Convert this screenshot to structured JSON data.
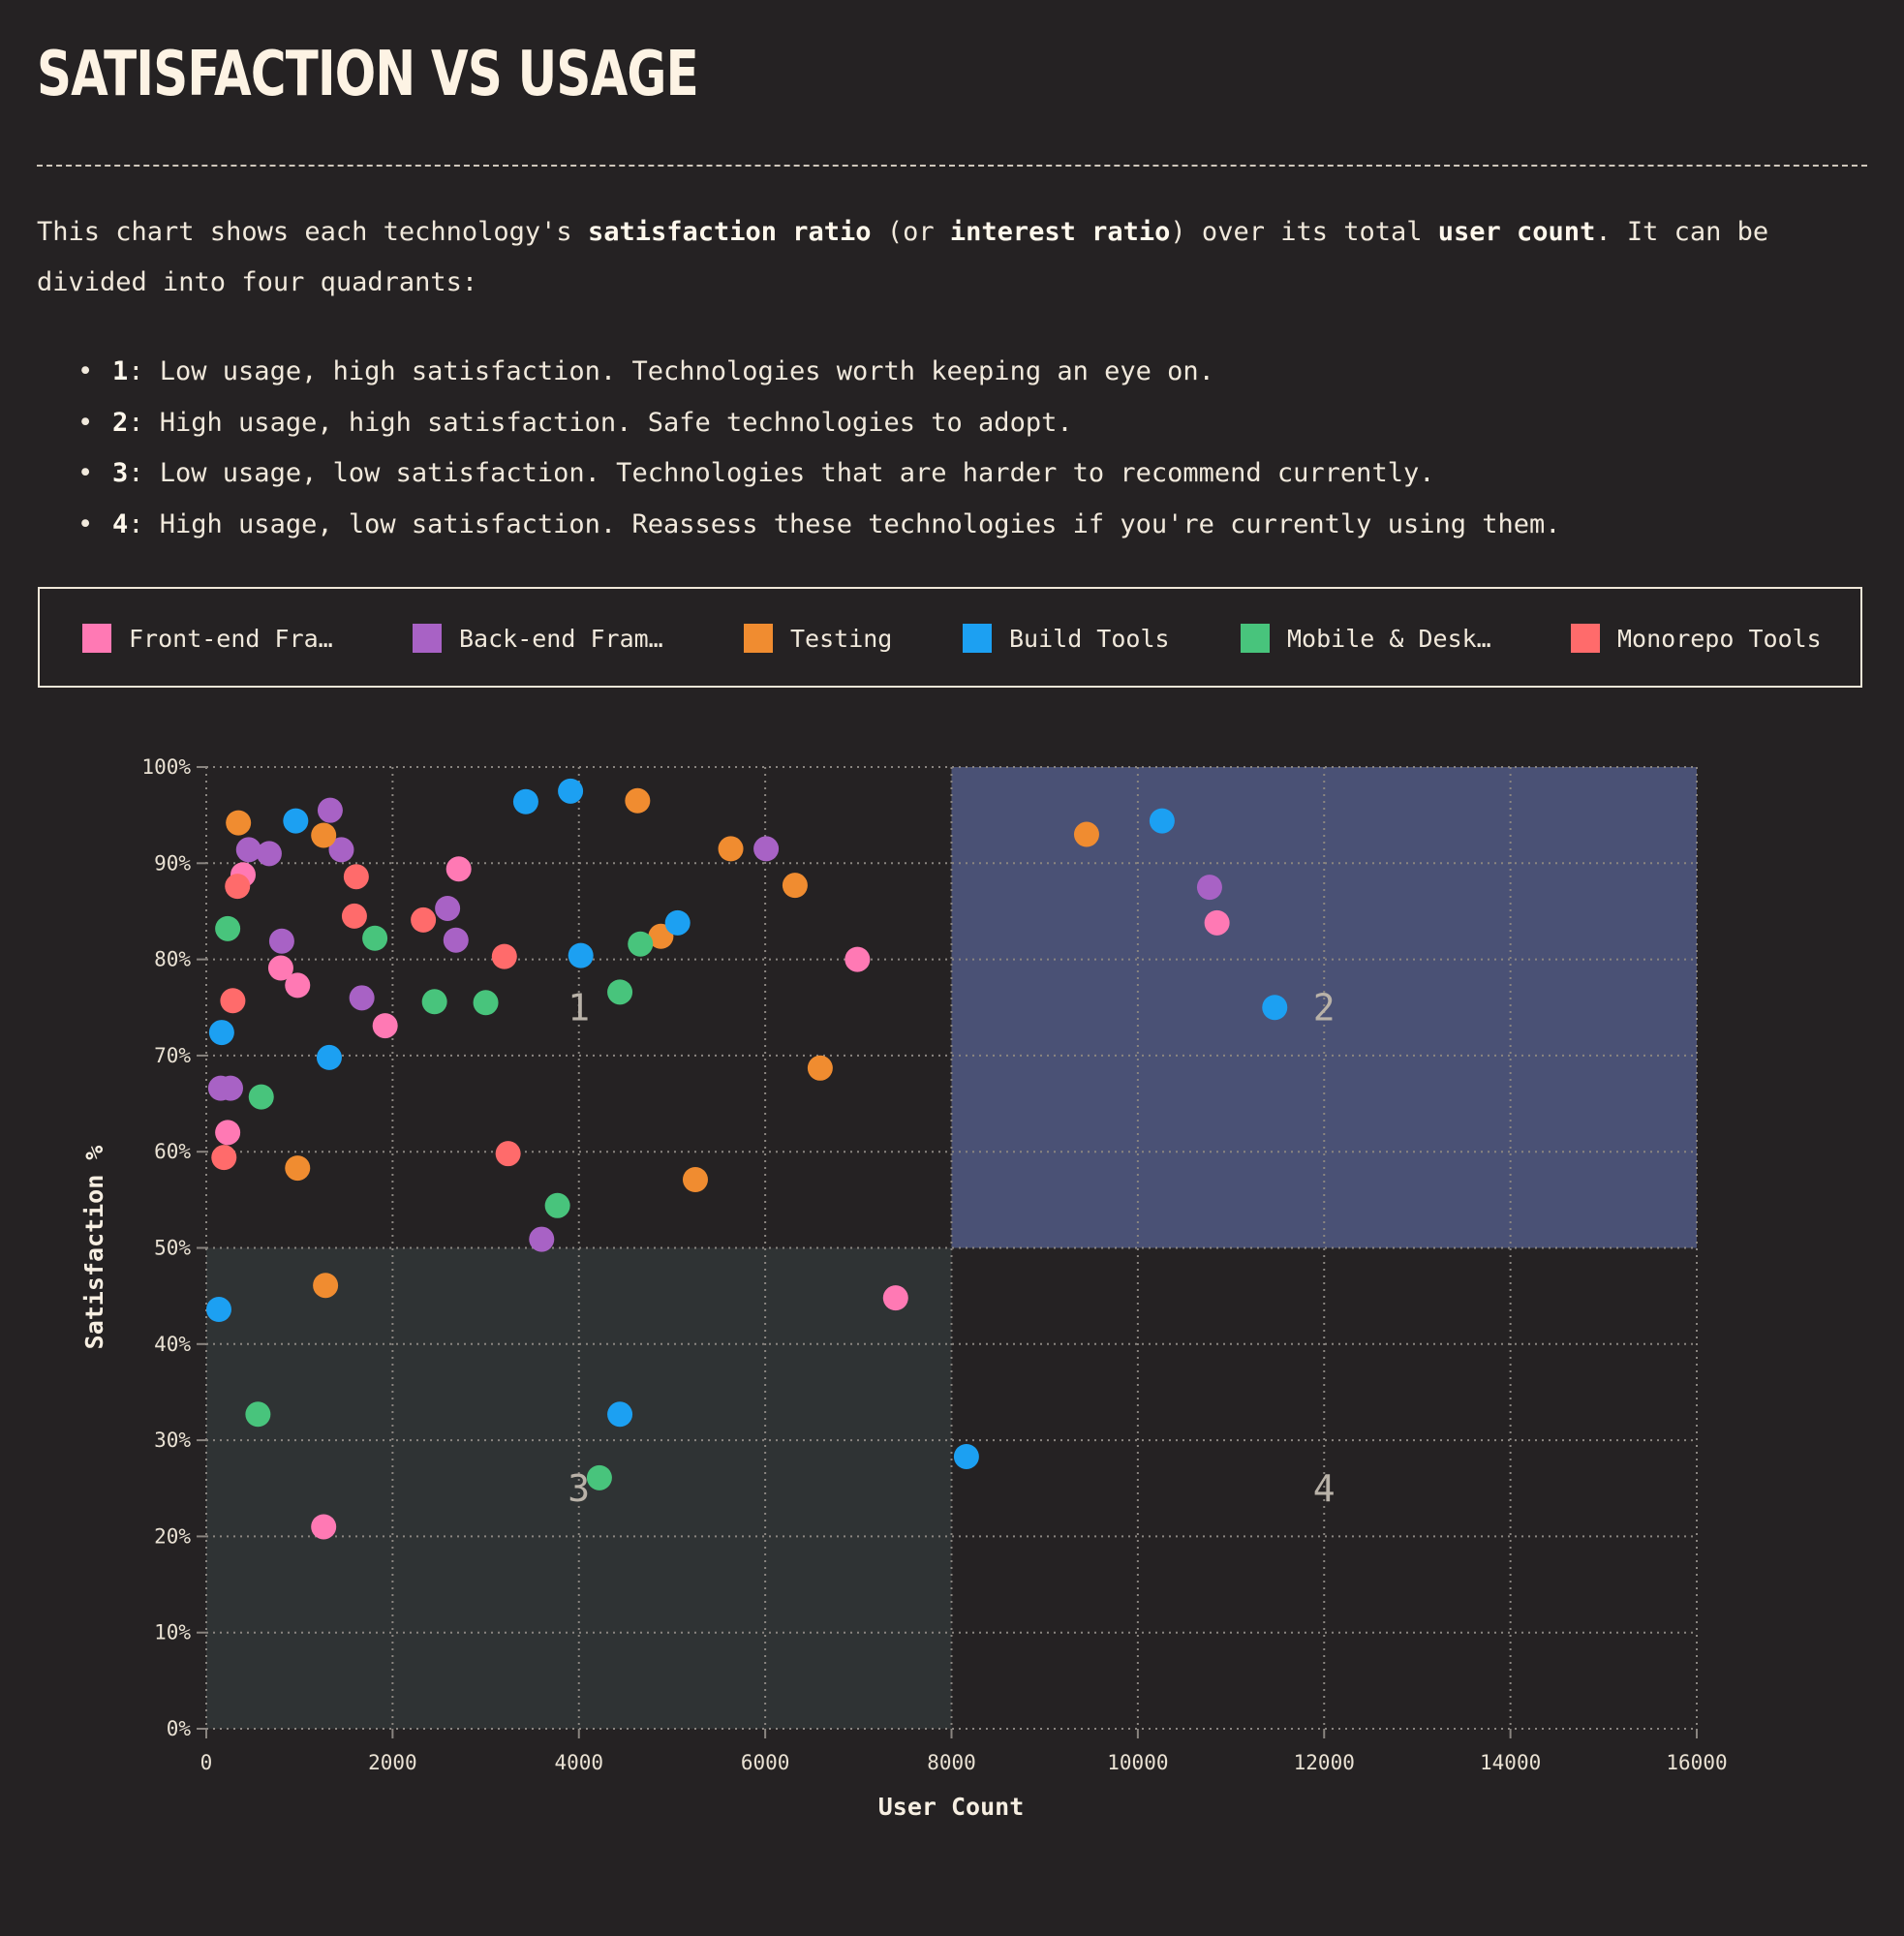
{
  "page": {
    "title": "SATISFACTION VS USAGE",
    "intro": {
      "t1": "This chart shows each technology's ",
      "b1": "satisfaction ratio",
      "t2": " (or ",
      "b2": "interest ratio",
      "t3": ") over its total ",
      "b3": "user count",
      "t4": ". It can be divided into four quadrants:"
    },
    "quadrants": [
      {
        "num": "1",
        "text": ": Low usage, high satisfaction. Technologies worth keeping an eye on."
      },
      {
        "num": "2",
        "text": ": High usage, high satisfaction. Safe technologies to adopt."
      },
      {
        "num": "3",
        "text": ": Low usage, low satisfaction. Technologies that are harder to recommend currently."
      },
      {
        "num": "4",
        "text": ": High usage, low satisfaction. Reassess these technologies if you're currently using them."
      }
    ],
    "bullet": "•"
  },
  "legend": [
    {
      "label": "Front-end Fra…",
      "color": "#ff79b4"
    },
    {
      "label": "Back-end Fram…",
      "color": "#a862c5"
    },
    {
      "label": "Testing",
      "color": "#f08c30"
    },
    {
      "label": "Build Tools",
      "color": "#1ca0f2"
    },
    {
      "label": "Mobile & Desk…",
      "color": "#48c47c"
    },
    {
      "label": "Monorepo Tools",
      "color": "#ff6b6b"
    }
  ],
  "chart_data": {
    "type": "scatter",
    "title": "Satisfaction vs Usage",
    "xlabel": "User Count",
    "ylabel": "Satisfaction %",
    "xlim": [
      0,
      16000
    ],
    "ylim": [
      0,
      100
    ],
    "x_ticks": [
      "0",
      "2000",
      "4000",
      "6000",
      "8000",
      "10000",
      "12000",
      "14000",
      "16000"
    ],
    "x_tick_values": [
      0,
      2000,
      4000,
      6000,
      8000,
      10000,
      12000,
      14000,
      16000
    ],
    "y_ticks": [
      "0%",
      "10%",
      "20%",
      "30%",
      "40%",
      "50%",
      "60%",
      "70%",
      "80%",
      "90%",
      "100%"
    ],
    "y_tick_values": [
      0,
      10,
      20,
      30,
      40,
      50,
      60,
      70,
      80,
      90,
      100
    ],
    "grid": true,
    "legend_position": "top",
    "quadrant_split": {
      "x": 8000,
      "y": 50
    },
    "quadrant_labels": [
      {
        "label": "1",
        "x": 4000,
        "y": 75
      },
      {
        "label": "2",
        "x": 12000,
        "y": 75
      },
      {
        "label": "3",
        "x": 4000,
        "y": 25
      },
      {
        "label": "4",
        "x": 12000,
        "y": 25
      }
    ],
    "quadrant_colors": {
      "q2": "#4a5175",
      "q3": "#2f3334"
    },
    "series": [
      {
        "name": "Front-end Frameworks",
        "color": "#ff79b4",
        "points": [
          [
            395,
            88.8
          ],
          [
            800,
            79.1
          ],
          [
            980,
            77.3
          ],
          [
            1920,
            73.1
          ],
          [
            2710,
            89.4
          ],
          [
            230,
            62.0
          ],
          [
            6990,
            80.0
          ],
          [
            10850,
            83.8
          ],
          [
            7400,
            44.8
          ],
          [
            1260,
            21.0
          ]
        ]
      },
      {
        "name": "Back-end Frameworks",
        "color": "#a862c5",
        "points": [
          [
            455,
            91.4
          ],
          [
            675,
            91.0
          ],
          [
            1330,
            95.5
          ],
          [
            1450,
            91.4
          ],
          [
            810,
            81.9
          ],
          [
            1670,
            76.0
          ],
          [
            2590,
            85.3
          ],
          [
            2680,
            82.0
          ],
          [
            155,
            66.6
          ],
          [
            260,
            66.6
          ],
          [
            3600,
            50.9
          ],
          [
            6010,
            91.5
          ],
          [
            10770,
            87.5
          ]
        ]
      },
      {
        "name": "Testing",
        "color": "#f08c30",
        "points": [
          [
            345,
            94.2
          ],
          [
            1260,
            92.9
          ],
          [
            4630,
            96.5
          ],
          [
            5630,
            91.5
          ],
          [
            6320,
            87.7
          ],
          [
            4880,
            82.4
          ],
          [
            6590,
            68.7
          ],
          [
            980,
            58.3
          ],
          [
            5250,
            57.1
          ],
          [
            1280,
            46.1
          ],
          [
            9450,
            93.0
          ]
        ]
      },
      {
        "name": "Build Tools",
        "color": "#1ca0f2",
        "points": [
          [
            960,
            94.4
          ],
          [
            3430,
            96.4
          ],
          [
            3910,
            97.5
          ],
          [
            4020,
            80.4
          ],
          [
            5060,
            83.8
          ],
          [
            1320,
            69.8
          ],
          [
            165,
            72.4
          ],
          [
            135,
            43.6
          ],
          [
            4440,
            32.7
          ],
          [
            8160,
            28.3
          ],
          [
            10260,
            94.4
          ],
          [
            11470,
            75.0
          ]
        ]
      },
      {
        "name": "Mobile & Desktop",
        "color": "#48c47c",
        "points": [
          [
            230,
            83.2
          ],
          [
            1810,
            82.2
          ],
          [
            590,
            65.7
          ],
          [
            2450,
            75.6
          ],
          [
            3000,
            75.5
          ],
          [
            3770,
            54.4
          ],
          [
            4660,
            81.6
          ],
          [
            4440,
            76.6
          ],
          [
            555,
            32.7
          ],
          [
            4220,
            26.1
          ]
        ]
      },
      {
        "name": "Monorepo Tools",
        "color": "#ff6b6b",
        "points": [
          [
            335,
            87.6
          ],
          [
            1610,
            88.6
          ],
          [
            1590,
            84.5
          ],
          [
            2330,
            84.1
          ],
          [
            3200,
            80.3
          ],
          [
            285,
            75.7
          ],
          [
            190,
            59.4
          ],
          [
            3240,
            59.8
          ]
        ]
      }
    ]
  }
}
